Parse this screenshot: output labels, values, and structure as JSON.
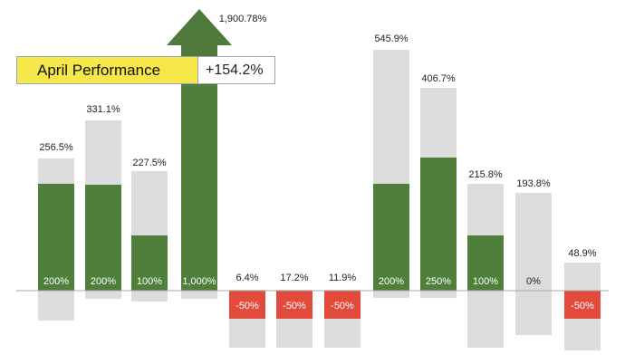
{
  "callout": {
    "label": "April Performance",
    "value": "+154.2%"
  },
  "colors": {
    "background_bar": "#dcdcdc",
    "positive": "#4f7f3a",
    "negative": "#e24b3c",
    "arrow": "#507a3b",
    "baseline": "#aaaaaa"
  },
  "chart_data": {
    "type": "bar",
    "title": "",
    "xlabel": "",
    "ylabel": "",
    "series": [
      {
        "inner_label": "200%",
        "outer_label": "256.5%",
        "inner_value": 200,
        "outer_value": 256.5
      },
      {
        "inner_label": "200%",
        "outer_label": "331.1%",
        "inner_value": 200,
        "outer_value": 331.1
      },
      {
        "inner_label": "100%",
        "outer_label": "227.5%",
        "inner_value": 100,
        "outer_value": 227.5
      },
      {
        "inner_label": "1,000%",
        "outer_label": "1,900.78%",
        "inner_value": 1000,
        "outer_value": 1900.78,
        "arrow": true
      },
      {
        "inner_label": "-50%",
        "outer_label": "6.4%",
        "inner_value": -50,
        "outer_value": 6.4
      },
      {
        "inner_label": "-50%",
        "outer_label": "17.2%",
        "inner_value": -50,
        "outer_value": 17.2
      },
      {
        "inner_label": "-50%",
        "outer_label": "11.9%",
        "inner_value": -50,
        "outer_value": 11.9
      },
      {
        "inner_label": "200%",
        "outer_label": "545.9%",
        "inner_value": 200,
        "outer_value": 545.9
      },
      {
        "inner_label": "250%",
        "outer_label": "406.7%",
        "inner_value": 250,
        "outer_value": 406.7
      },
      {
        "inner_label": "100%",
        "outer_label": "215.8%",
        "inner_value": 100,
        "outer_value": 215.8
      },
      {
        "inner_label": "0%",
        "outer_label": "193.8%",
        "inner_value": 0,
        "outer_value": 193.8
      },
      {
        "inner_label": "-50%",
        "outer_label": "48.9%",
        "inner_value": -50,
        "outer_value": 48.9
      }
    ]
  }
}
